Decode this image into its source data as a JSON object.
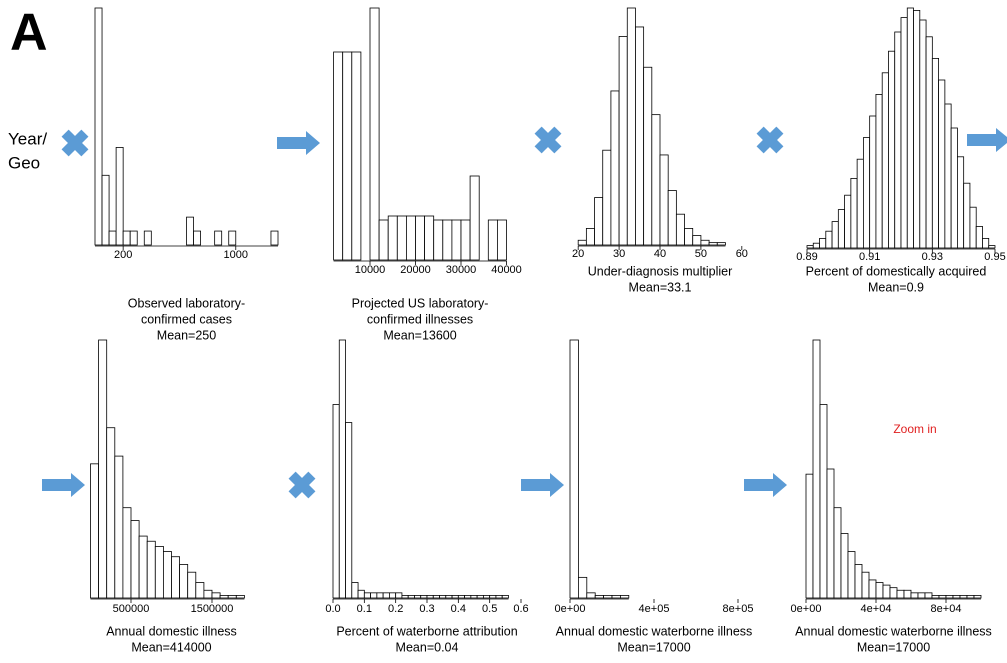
{
  "panel_label": "A",
  "side_label": [
    "Year/",
    "Geo"
  ],
  "chart_data": [
    {
      "type": "histogram",
      "xlabel": [
        "Observed laboratory-",
        "confirmed cases"
      ],
      "mean_label": "Mean=250",
      "color": "#ffffff",
      "bins": [
        0,
        50,
        100,
        150,
        200,
        250,
        300,
        350,
        400,
        450,
        500,
        550,
        600,
        650,
        700,
        750,
        800,
        850,
        900,
        950,
        1000,
        1050,
        1100,
        1150,
        1200,
        1250,
        1300
      ],
      "values": [
        17,
        5,
        1,
        7,
        1,
        1,
        0,
        1,
        0,
        0,
        0,
        0,
        0,
        2,
        1,
        0,
        0,
        1,
        0,
        1,
        0,
        0,
        0,
        0,
        0,
        1
      ],
      "xlim": [
        0,
        1300
      ],
      "xticks": [
        200,
        1000
      ]
    },
    {
      "type": "histogram",
      "xlabel": [
        "Projected US laboratory-",
        "confirmed illnesses"
      ],
      "mean_label": "Mean=13600",
      "color": "#ffffff",
      "bins": [
        2000,
        4000,
        6000,
        8000,
        10000,
        12000,
        14000,
        16000,
        18000,
        20000,
        22000,
        24000,
        26000,
        28000,
        30000,
        32000,
        34000,
        36000,
        38000,
        40000
      ],
      "values": [
        52,
        52,
        52,
        0,
        63,
        10,
        11,
        11,
        11,
        11,
        11,
        10,
        10,
        10,
        10,
        21,
        0,
        10,
        10
      ],
      "xlim": [
        0,
        42000
      ],
      "xticks": [
        10000,
        20000,
        30000,
        40000
      ]
    },
    {
      "type": "histogram",
      "xlabel": [
        "Under-diagnosis multiplier"
      ],
      "mean_label": "Mean=33.1",
      "color": "#ffffff",
      "bins": [
        20,
        22,
        24,
        26,
        28,
        30,
        32,
        34,
        36,
        38,
        40,
        42,
        44,
        46,
        48,
        50,
        52,
        54,
        56
      ],
      "values": [
        2,
        7,
        20,
        40,
        65,
        88,
        100,
        92,
        75,
        55,
        38,
        23,
        13,
        7,
        4,
        2,
        1,
        1
      ],
      "xlim": [
        18,
        62
      ],
      "xticks": [
        20,
        30,
        40,
        50,
        60
      ]
    },
    {
      "type": "histogram",
      "xlabel": [
        "Percent of domestically acquired"
      ],
      "mean_label": "Mean=0.9",
      "color": "#ffffff",
      "bins": [
        0.89,
        0.892,
        0.894,
        0.896,
        0.898,
        0.9,
        0.902,
        0.904,
        0.906,
        0.908,
        0.91,
        0.912,
        0.914,
        0.916,
        0.918,
        0.92,
        0.922,
        0.924,
        0.926,
        0.928,
        0.93,
        0.932,
        0.934,
        0.936,
        0.938,
        0.94,
        0.942,
        0.944,
        0.946,
        0.948,
        0.95
      ],
      "values": [
        1,
        2,
        4,
        7,
        11,
        16,
        22,
        29,
        37,
        46,
        55,
        64,
        73,
        82,
        90,
        96,
        100,
        99,
        95,
        88,
        79,
        70,
        60,
        50,
        38,
        27,
        17,
        9,
        4,
        1
      ],
      "xlim": [
        0.89,
        0.95
      ],
      "xticks": [
        0.89,
        0.91,
        0.93,
        0.95
      ]
    },
    {
      "type": "histogram",
      "xlabel": [
        "Annual domestic illness"
      ],
      "mean_label": "Mean=414000",
      "color": "#ffffff",
      "bins": [
        0,
        100000,
        200000,
        300000,
        400000,
        500000,
        600000,
        700000,
        800000,
        900000,
        1000000,
        1100000,
        1200000,
        1300000,
        1400000,
        1500000,
        1600000,
        1700000,
        1800000,
        1900000
      ],
      "values": [
        52,
        100,
        66,
        55,
        35,
        30,
        24,
        22,
        20,
        18,
        16,
        13,
        10,
        6,
        3,
        2,
        1,
        1,
        1
      ],
      "xlim": [
        0,
        2000000
      ],
      "xticks": [
        500000,
        1500000
      ]
    },
    {
      "type": "histogram",
      "xlabel": [
        "Percent of waterborne attribution"
      ],
      "mean_label": "Mean=0.04",
      "color": "#ffffff",
      "bins": [
        0,
        0.02,
        0.04,
        0.06,
        0.08,
        0.1,
        0.12,
        0.14,
        0.16,
        0.18,
        0.2,
        0.22,
        0.24,
        0.26,
        0.28,
        0.3,
        0.32,
        0.34,
        0.36,
        0.38,
        0.4,
        0.42,
        0.44,
        0.46,
        0.48,
        0.5,
        0.52,
        0.54,
        0.56
      ],
      "values": [
        75,
        100,
        68,
        6,
        3,
        2,
        2,
        2,
        2,
        2,
        2,
        1,
        1,
        1,
        1,
        1,
        1,
        1,
        1,
        1,
        1,
        1,
        1,
        1,
        1,
        1,
        1,
        1
      ],
      "xlim": [
        0,
        0.6
      ],
      "xticks": [
        {
          "value": 0,
          "label": "0.0"
        },
        0.1,
        0.2,
        0.3,
        0.4,
        0.5,
        0.6
      ]
    },
    {
      "type": "histogram",
      "xlabel": [
        "Annual domestic waterborne illness"
      ],
      "mean_label": "Mean=17000",
      "color": "#ffffff",
      "bins": [
        0,
        40000,
        80000,
        120000,
        160000,
        200000,
        240000,
        280000
      ],
      "values": [
        100,
        8,
        2,
        1,
        1,
        1,
        1
      ],
      "xlim": [
        0,
        800000
      ],
      "xticks": [
        {
          "value": 0,
          "label": "0e+00"
        },
        {
          "value": 400000,
          "label": "4e+05"
        },
        {
          "value": 800000,
          "label": "8e+05"
        }
      ]
    },
    {
      "type": "histogram",
      "xlabel": [
        "Annual domestic waterborne illness"
      ],
      "mean_label": "Mean=17000",
      "color": "#ffffff",
      "annotation": "Zoom in",
      "bins": [
        0,
        4000,
        8000,
        12000,
        16000,
        20000,
        24000,
        28000,
        32000,
        36000,
        40000,
        44000,
        48000,
        52000,
        56000,
        60000,
        64000,
        68000,
        72000,
        76000,
        80000,
        84000,
        88000,
        92000,
        96000,
        100000
      ],
      "values": [
        48,
        100,
        75,
        50,
        35,
        25,
        18,
        13,
        10,
        7,
        6,
        5,
        4,
        3,
        3,
        2,
        2,
        2,
        1,
        1,
        1,
        1,
        1,
        1,
        1
      ],
      "xlim": [
        0,
        100000
      ],
      "xticks": [
        {
          "value": 0,
          "label": "0e+00"
        },
        {
          "value": 40000,
          "label": "4e+04"
        },
        {
          "value": 80000,
          "label": "8e+04"
        }
      ]
    }
  ]
}
